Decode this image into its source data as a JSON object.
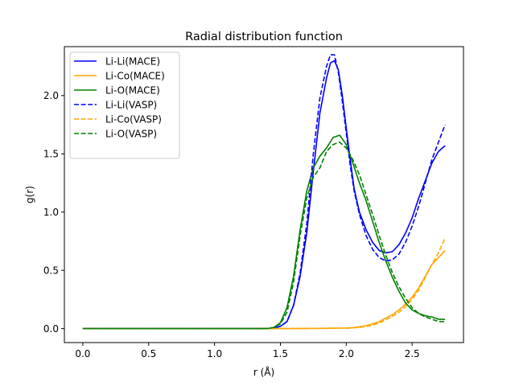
{
  "chart_data": {
    "type": "line",
    "title": "Radial distribution function",
    "xlabel": "r (Å)",
    "ylabel": "g(r)",
    "xlim": [
      -0.14,
      2.89
    ],
    "ylim": [
      -0.12,
      2.42
    ],
    "xticks": [
      0.0,
      0.5,
      1.0,
      1.5,
      2.0,
      2.5
    ],
    "xtick_labels": [
      "0.0",
      "0.5",
      "1.0",
      "1.5",
      "2.0",
      "2.5"
    ],
    "yticks": [
      0.0,
      0.5,
      1.0,
      1.5,
      2.0
    ],
    "ytick_labels": [
      "0.0",
      "0.5",
      "1.0",
      "1.5",
      "2.0"
    ],
    "grid": false,
    "legend_position": "top-left",
    "series": [
      {
        "name": "Li-Li(MACE)",
        "color": "#0000ff",
        "style": "solid",
        "x": [
          0.0,
          0.25,
          0.5,
          0.75,
          1.0,
          1.25,
          1.4,
          1.45,
          1.5,
          1.55,
          1.6,
          1.65,
          1.7,
          1.75,
          1.8,
          1.85,
          1.88,
          1.91,
          1.94,
          1.97,
          2.0,
          2.03,
          2.06,
          2.1,
          2.15,
          2.2,
          2.25,
          2.3,
          2.35,
          2.4,
          2.45,
          2.5,
          2.55,
          2.6,
          2.65,
          2.7,
          2.75
        ],
        "y": [
          0.0,
          0.0,
          0.0,
          0.0,
          0.0,
          0.0,
          0.0,
          0.005,
          0.02,
          0.06,
          0.2,
          0.45,
          0.82,
          1.35,
          1.85,
          2.15,
          2.28,
          2.3,
          2.22,
          2.0,
          1.72,
          1.45,
          1.2,
          1.0,
          0.85,
          0.74,
          0.67,
          0.65,
          0.66,
          0.72,
          0.82,
          0.95,
          1.12,
          1.27,
          1.42,
          1.52,
          1.57
        ]
      },
      {
        "name": "Li-Co(MACE)",
        "color": "#ffa500",
        "style": "solid",
        "x": [
          0.0,
          0.5,
          1.0,
          1.5,
          1.8,
          2.0,
          2.05,
          2.1,
          2.15,
          2.2,
          2.25,
          2.3,
          2.35,
          2.4,
          2.45,
          2.5,
          2.55,
          2.6,
          2.65,
          2.7,
          2.75
        ],
        "y": [
          0.0,
          0.0,
          0.0,
          0.0,
          0.002,
          0.005,
          0.008,
          0.015,
          0.025,
          0.04,
          0.06,
          0.09,
          0.12,
          0.16,
          0.21,
          0.27,
          0.35,
          0.45,
          0.55,
          0.61,
          0.67
        ]
      },
      {
        "name": "Li-O(MACE)",
        "color": "#008000",
        "style": "solid",
        "x": [
          0.0,
          0.25,
          0.5,
          0.75,
          1.0,
          1.25,
          1.4,
          1.45,
          1.5,
          1.55,
          1.6,
          1.65,
          1.7,
          1.75,
          1.8,
          1.85,
          1.9,
          1.95,
          2.0,
          2.05,
          2.1,
          2.15,
          2.2,
          2.25,
          2.3,
          2.35,
          2.4,
          2.45,
          2.5,
          2.55,
          2.6,
          2.65,
          2.7,
          2.75
        ],
        "y": [
          0.0,
          0.0,
          0.0,
          0.0,
          0.0,
          0.0,
          0.0,
          0.01,
          0.05,
          0.18,
          0.45,
          0.85,
          1.18,
          1.38,
          1.48,
          1.55,
          1.64,
          1.66,
          1.58,
          1.42,
          1.25,
          1.1,
          0.92,
          0.74,
          0.58,
          0.44,
          0.32,
          0.22,
          0.16,
          0.13,
          0.11,
          0.1,
          0.08,
          0.08
        ]
      },
      {
        "name": "Li-Li(VASP)",
        "color": "#0000ff",
        "style": "dashed",
        "x": [
          0.0,
          0.25,
          0.5,
          0.75,
          1.0,
          1.25,
          1.4,
          1.45,
          1.5,
          1.55,
          1.6,
          1.65,
          1.7,
          1.75,
          1.8,
          1.85,
          1.88,
          1.91,
          1.94,
          1.97,
          2.0,
          2.03,
          2.06,
          2.1,
          2.15,
          2.2,
          2.25,
          2.3,
          2.35,
          2.4,
          2.45,
          2.5,
          2.55,
          2.6,
          2.65,
          2.7,
          2.75
        ],
        "y": [
          0.0,
          0.0,
          0.0,
          0.0,
          0.0,
          0.0,
          0.0,
          0.005,
          0.02,
          0.06,
          0.2,
          0.48,
          0.9,
          1.5,
          1.98,
          2.25,
          2.35,
          2.35,
          2.2,
          1.95,
          1.68,
          1.4,
          1.18,
          0.98,
          0.8,
          0.68,
          0.61,
          0.58,
          0.59,
          0.64,
          0.74,
          0.88,
          1.05,
          1.25,
          1.45,
          1.6,
          1.75
        ]
      },
      {
        "name": "Li-Co(VASP)",
        "color": "#ffa500",
        "style": "dashed",
        "x": [
          0.0,
          0.5,
          1.0,
          1.5,
          1.8,
          2.0,
          2.05,
          2.1,
          2.15,
          2.2,
          2.25,
          2.3,
          2.35,
          2.4,
          2.45,
          2.5,
          2.55,
          2.6,
          2.65,
          2.7,
          2.75
        ],
        "y": [
          0.0,
          0.0,
          0.0,
          0.0,
          0.002,
          0.004,
          0.006,
          0.01,
          0.018,
          0.03,
          0.048,
          0.075,
          0.105,
          0.14,
          0.19,
          0.25,
          0.33,
          0.44,
          0.55,
          0.65,
          0.78
        ]
      },
      {
        "name": "Li-O(VASP)",
        "color": "#008000",
        "style": "dashed",
        "x": [
          0.0,
          0.25,
          0.5,
          0.75,
          1.0,
          1.25,
          1.4,
          1.45,
          1.5,
          1.55,
          1.6,
          1.65,
          1.7,
          1.75,
          1.8,
          1.85,
          1.9,
          1.95,
          2.0,
          2.05,
          2.1,
          2.15,
          2.2,
          2.25,
          2.3,
          2.35,
          2.4,
          2.45,
          2.5,
          2.55,
          2.6,
          2.65,
          2.7,
          2.75
        ],
        "y": [
          0.0,
          0.0,
          0.0,
          0.0,
          0.0,
          0.0,
          0.0,
          0.01,
          0.04,
          0.14,
          0.4,
          0.8,
          1.12,
          1.3,
          1.38,
          1.52,
          1.58,
          1.6,
          1.55,
          1.45,
          1.32,
          1.15,
          0.98,
          0.8,
          0.63,
          0.48,
          0.36,
          0.26,
          0.18,
          0.13,
          0.1,
          0.08,
          0.06,
          0.06
        ]
      }
    ]
  }
}
